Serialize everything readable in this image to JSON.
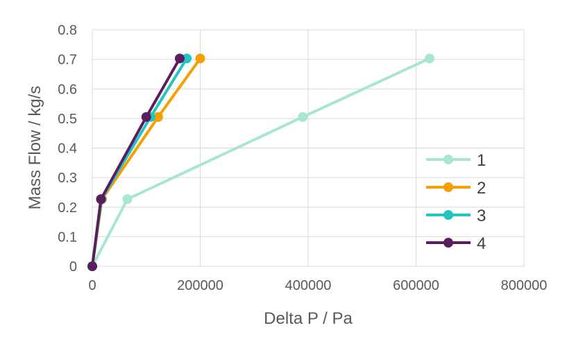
{
  "chart_data": {
    "type": "scatter",
    "title": "",
    "xlabel": "Delta P / Pa",
    "ylabel": "Mass Flow / kg/s",
    "xlim": [
      0,
      800000
    ],
    "ylim": [
      0,
      0.8
    ],
    "xticks": [
      0,
      200000,
      400000,
      600000,
      800000
    ],
    "xtick_labels": [
      "0",
      "200000",
      "400000",
      "600000",
      "800000"
    ],
    "yticks": [
      0,
      0.1,
      0.2,
      0.3,
      0.4,
      0.5,
      0.6,
      0.7,
      0.8
    ],
    "ytick_labels": [
      "0",
      "0.1",
      "0.2",
      "0.3",
      "0.4",
      "0.5",
      "0.6",
      "0.7",
      "0.8"
    ],
    "grid": true,
    "legend_position": "right",
    "series": [
      {
        "name": "1",
        "color": "#a8e6cf",
        "x": [
          0,
          65000,
          390000,
          625000
        ],
        "y": [
          0,
          0.227,
          0.505,
          0.703
        ]
      },
      {
        "name": "2",
        "color": "#f5a000",
        "x": [
          0,
          18000,
          122000,
          200000
        ],
        "y": [
          0,
          0.227,
          0.505,
          0.703
        ]
      },
      {
        "name": "3",
        "color": "#22c4c4",
        "x": [
          0,
          17000,
          108000,
          175000
        ],
        "y": [
          0,
          0.227,
          0.505,
          0.703
        ]
      },
      {
        "name": "4",
        "color": "#5a1e5e",
        "x": [
          0,
          16000,
          100000,
          162000
        ],
        "y": [
          0,
          0.227,
          0.505,
          0.703
        ]
      }
    ]
  }
}
